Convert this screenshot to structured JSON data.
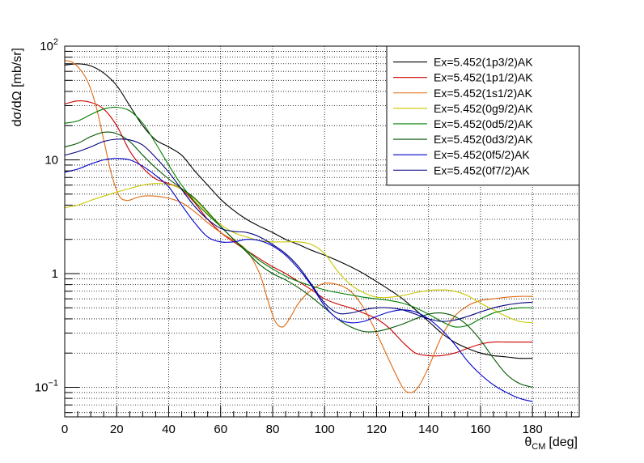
{
  "chart_data": {
    "type": "line",
    "xlabel": "θCM [deg]",
    "xlabel_main": "θ",
    "xlabel_sub": "CM",
    "xlabel_unit": "[deg]",
    "ylabel": "dσ/dΩ [mb/sr]",
    "xlim": [
      0,
      198
    ],
    "ylim": [
      0.055,
      100
    ],
    "yscale": "log",
    "grid": true,
    "legend_position": "top-right",
    "x_ticks": [
      0,
      20,
      40,
      60,
      80,
      100,
      120,
      140,
      160,
      180
    ],
    "y_ticks": [
      {
        "value": 100,
        "base": "10",
        "exp": "2"
      },
      {
        "value": 10,
        "base": "10",
        "exp": ""
      },
      {
        "value": 1,
        "base": "1",
        "exp": ""
      },
      {
        "value": 0.1,
        "base": "10",
        "exp": "−1"
      }
    ],
    "series": [
      {
        "name": "Ex=5.452(1p3/2)AK",
        "color": "#000000",
        "x": [
          0,
          5,
          10,
          15,
          20,
          25,
          30,
          35,
          40,
          45,
          50,
          55,
          60,
          65,
          70,
          75,
          80,
          85,
          90,
          95,
          100,
          105,
          110,
          115,
          120,
          125,
          130,
          135,
          140,
          145,
          150,
          155,
          160,
          165,
          170,
          175,
          180
        ],
        "y": [
          68,
          70,
          67,
          58,
          45,
          30,
          20,
          15,
          13,
          11,
          8,
          6,
          4.5,
          3.6,
          3.0,
          2.6,
          2.3,
          2.0,
          1.8,
          1.6,
          1.45,
          1.3,
          1.15,
          1.0,
          0.85,
          0.72,
          0.6,
          0.48,
          0.38,
          0.3,
          0.25,
          0.22,
          0.2,
          0.19,
          0.185,
          0.18,
          0.18
        ]
      },
      {
        "name": "Ex=5.452(1p1/2)AK",
        "color": "#cc0000",
        "x": [
          0,
          5,
          10,
          15,
          20,
          25,
          30,
          35,
          40,
          45,
          50,
          55,
          60,
          65,
          70,
          75,
          80,
          85,
          90,
          95,
          100,
          105,
          110,
          115,
          120,
          125,
          130,
          135,
          140,
          145,
          150,
          155,
          160,
          165,
          170,
          175,
          180
        ],
        "y": [
          31,
          33,
          32,
          28,
          20,
          12,
          8.5,
          6.8,
          6.2,
          5.5,
          4.2,
          3.0,
          2.3,
          1.9,
          1.6,
          1.35,
          1.15,
          1.0,
          0.85,
          0.72,
          0.6,
          0.54,
          0.5,
          0.45,
          0.4,
          0.33,
          0.25,
          0.2,
          0.19,
          0.19,
          0.2,
          0.22,
          0.24,
          0.25,
          0.25,
          0.25,
          0.25
        ]
      },
      {
        "name": "Ex=5.452(1s1/2)AK",
        "color": "#e06a10",
        "x": [
          0,
          3,
          6,
          9,
          12,
          15,
          18,
          21,
          24,
          27,
          30,
          35,
          40,
          45,
          50,
          55,
          60,
          65,
          70,
          75,
          78,
          81,
          84,
          87,
          90,
          95,
          100,
          105,
          110,
          115,
          120,
          125,
          130,
          133,
          136,
          140,
          145,
          150,
          155,
          160,
          165,
          170,
          175,
          180
        ],
        "y": [
          75,
          72,
          62,
          48,
          30,
          15,
          7.5,
          4.8,
          4.4,
          4.6,
          4.8,
          4.8,
          4.6,
          4.2,
          3.5,
          2.8,
          2.3,
          1.95,
          1.6,
          1.0,
          0.6,
          0.38,
          0.34,
          0.42,
          0.55,
          0.72,
          0.82,
          0.8,
          0.7,
          0.5,
          0.3,
          0.17,
          0.1,
          0.09,
          0.1,
          0.15,
          0.28,
          0.42,
          0.52,
          0.58,
          0.6,
          0.62,
          0.63,
          0.63
        ]
      },
      {
        "name": "Ex=5.452(0g9/2)AK",
        "color": "#c8c800",
        "x": [
          0,
          5,
          10,
          15,
          20,
          25,
          30,
          35,
          40,
          45,
          50,
          55,
          60,
          65,
          70,
          75,
          80,
          85,
          90,
          95,
          100,
          105,
          110,
          115,
          120,
          125,
          130,
          135,
          140,
          145,
          150,
          155,
          160,
          165,
          170,
          175,
          180
        ],
        "y": [
          3.8,
          4.0,
          4.4,
          4.8,
          5.2,
          5.6,
          6.0,
          6.2,
          6.1,
          5.5,
          4.5,
          3.4,
          2.7,
          2.3,
          2.1,
          1.95,
          1.9,
          1.9,
          1.9,
          1.8,
          1.5,
          1.05,
          0.8,
          0.68,
          0.62,
          0.62,
          0.64,
          0.68,
          0.71,
          0.72,
          0.7,
          0.64,
          0.55,
          0.48,
          0.42,
          0.38,
          0.37
        ]
      },
      {
        "name": "Ex=5.452(0d5/2)AK",
        "color": "#008000",
        "x": [
          0,
          5,
          10,
          15,
          20,
          25,
          30,
          35,
          40,
          45,
          50,
          55,
          60,
          65,
          70,
          75,
          80,
          85,
          90,
          95,
          100,
          105,
          110,
          115,
          120,
          125,
          130,
          135,
          140,
          145,
          150,
          155,
          160,
          165,
          170,
          175,
          180
        ],
        "y": [
          21,
          22,
          25,
          28,
          29,
          27,
          21,
          14,
          9,
          6,
          4.3,
          3.3,
          2.6,
          2.0,
          1.6,
          1.3,
          1.1,
          0.95,
          0.85,
          0.78,
          0.72,
          0.68,
          0.65,
          0.62,
          0.6,
          0.58,
          0.55,
          0.5,
          0.44,
          0.38,
          0.34,
          0.35,
          0.4,
          0.45,
          0.48,
          0.5,
          0.5
        ]
      },
      {
        "name": "Ex=5.452(0d3/2)AK",
        "color": "#005500",
        "x": [
          0,
          5,
          10,
          15,
          20,
          25,
          30,
          35,
          40,
          45,
          50,
          55,
          60,
          65,
          70,
          75,
          80,
          85,
          90,
          95,
          100,
          105,
          110,
          115,
          120,
          125,
          130,
          135,
          140,
          145,
          150,
          155,
          160,
          165,
          170,
          175,
          180
        ],
        "y": [
          13,
          14,
          16,
          17.5,
          17,
          14.5,
          11,
          8.5,
          6.8,
          5.6,
          4.6,
          3.5,
          2.6,
          2.0,
          1.55,
          1.2,
          1.0,
          0.88,
          0.75,
          0.62,
          0.5,
          0.4,
          0.34,
          0.31,
          0.31,
          0.33,
          0.36,
          0.4,
          0.44,
          0.45,
          0.42,
          0.35,
          0.26,
          0.18,
          0.13,
          0.108,
          0.1
        ]
      },
      {
        "name": "Ex=5.452(0f5/2)AK",
        "color": "#0000cc",
        "x": [
          0,
          5,
          10,
          15,
          20,
          25,
          30,
          35,
          40,
          45,
          50,
          55,
          60,
          65,
          70,
          75,
          80,
          85,
          90,
          95,
          100,
          105,
          110,
          115,
          120,
          125,
          130,
          135,
          140,
          145,
          150,
          155,
          160,
          165,
          170,
          175,
          180
        ],
        "y": [
          7.8,
          8.3,
          9.2,
          10,
          10.3,
          10,
          8.8,
          7.3,
          5.8,
          4.0,
          2.8,
          2.1,
          1.9,
          1.9,
          2.0,
          1.95,
          1.75,
          1.45,
          1.1,
          0.78,
          0.52,
          0.4,
          0.37,
          0.38,
          0.42,
          0.46,
          0.48,
          0.46,
          0.4,
          0.32,
          0.24,
          0.17,
          0.13,
          0.105,
          0.09,
          0.08,
          0.075
        ]
      },
      {
        "name": "Ex=5.452(0f7/2)AK",
        "color": "#00007a",
        "x": [
          0,
          5,
          10,
          15,
          20,
          25,
          30,
          35,
          40,
          45,
          50,
          55,
          60,
          65,
          70,
          75,
          80,
          85,
          90,
          95,
          100,
          105,
          110,
          115,
          120,
          125,
          130,
          135,
          140,
          145,
          150,
          155,
          160,
          165,
          170,
          175,
          180
        ],
        "y": [
          11,
          11.8,
          13,
          14.5,
          15.2,
          15,
          13.5,
          10.5,
          7.8,
          5.5,
          3.9,
          3.0,
          2.5,
          2.35,
          2.3,
          2.1,
          1.8,
          1.5,
          1.15,
          0.8,
          0.55,
          0.45,
          0.45,
          0.48,
          0.5,
          0.5,
          0.48,
          0.44,
          0.4,
          0.38,
          0.39,
          0.42,
          0.46,
          0.5,
          0.53,
          0.55,
          0.56
        ]
      }
    ]
  }
}
